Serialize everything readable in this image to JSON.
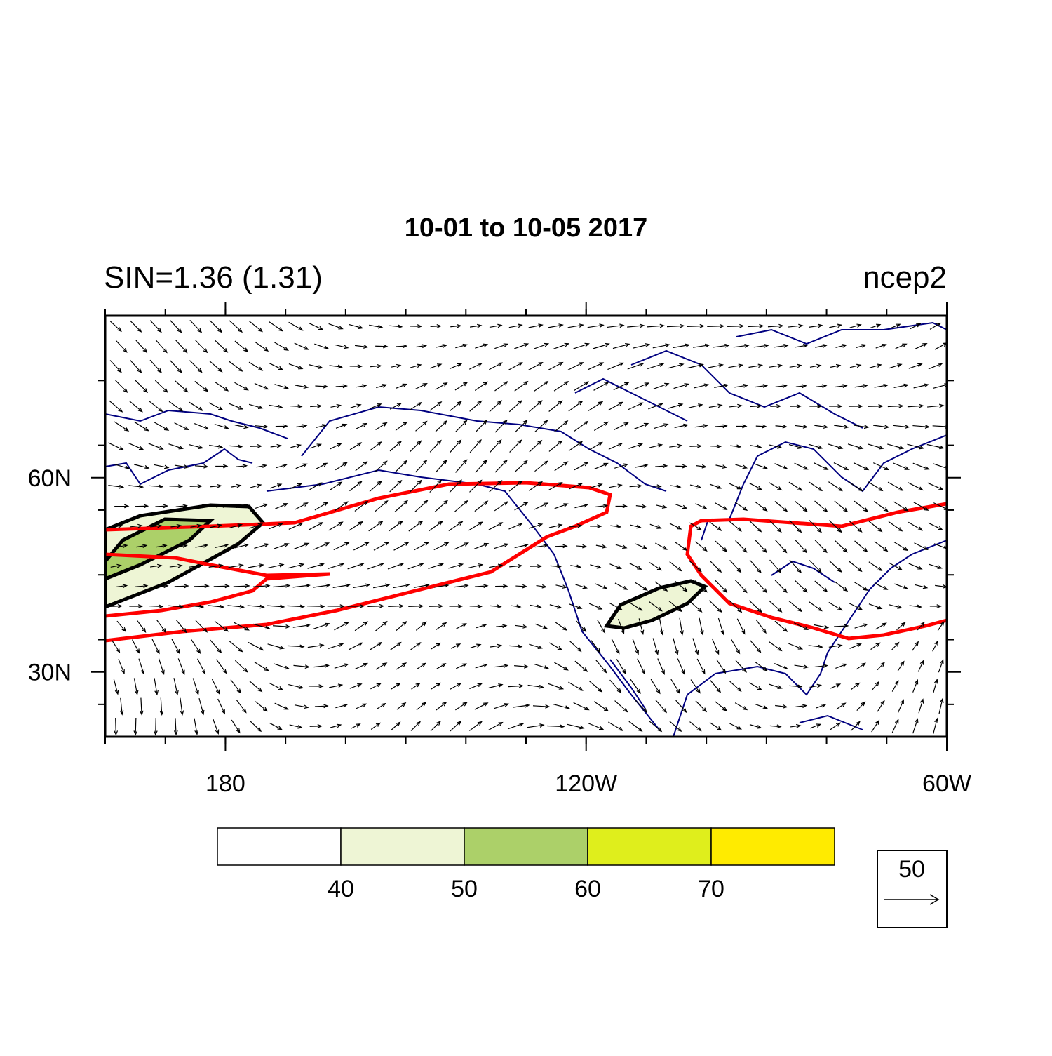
{
  "map": {
    "title": "10-01 to 10-05 2017",
    "left_string": "SIN=1.36 (1.31)",
    "right_string": "ncep2",
    "xlim": [
      160,
      300
    ],
    "ylim": [
      20,
      85
    ],
    "xticks": [
      {
        "value": 180,
        "label": "180"
      },
      {
        "value": 240,
        "label": "120W"
      },
      {
        "value": 300,
        "label": "60W"
      }
    ],
    "yticks": [
      {
        "value": 30,
        "label": "30N"
      },
      {
        "value": 60,
        "label": "60N"
      }
    ],
    "colorbar": {
      "levels": [
        40,
        50,
        60,
        70
      ],
      "colors": [
        "#ffffff",
        "#eef5d5",
        "#acd069",
        "#dfee1c",
        "#ffeb00"
      ]
    },
    "reference_vector": {
      "label": "50"
    }
  }
}
